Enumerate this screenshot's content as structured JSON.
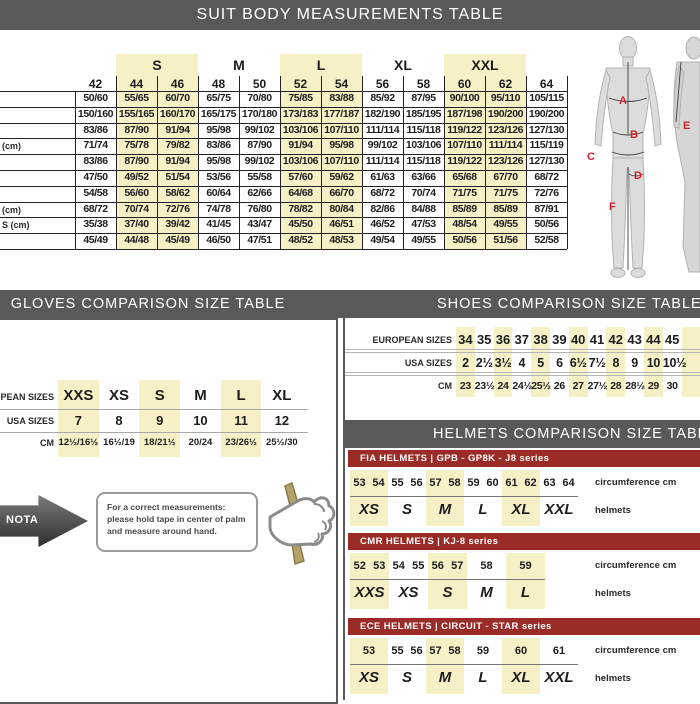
{
  "colors": {
    "header_bar": "#58595b",
    "series_bar": "#9b2b26",
    "highlight_yellow": "#f5f0c5",
    "marker_red": "#d12128"
  },
  "suit": {
    "title": "SUIT BODY MEASUREMENTS TABLE",
    "size_groups": [
      {
        "label": "S",
        "highlight": true
      },
      {
        "label": "M",
        "highlight": false
      },
      {
        "label": "L",
        "highlight": true
      },
      {
        "label": "XL",
        "highlight": false
      },
      {
        "label": "XXL",
        "highlight": true
      }
    ],
    "columns": [
      "42",
      "44",
      "46",
      "48",
      "50",
      "52",
      "54",
      "56",
      "58",
      "60",
      "62",
      "64"
    ],
    "rows": [
      {
        "label": "",
        "values": [
          "50/60",
          "55/65",
          "60/70",
          "65/75",
          "70/80",
          "75/85",
          "83/88",
          "85/92",
          "87/95",
          "90/100",
          "95/110",
          "105/115"
        ]
      },
      {
        "label": "",
        "values": [
          "150/160",
          "155/165",
          "160/170",
          "165/175",
          "170/180",
          "173/183",
          "177/187",
          "182/190",
          "185/195",
          "187/198",
          "190/200",
          "190/200"
        ]
      },
      {
        "label": "",
        "values": [
          "83/86",
          "87/90",
          "91/94",
          "95/98",
          "99/102",
          "103/106",
          "107/110",
          "111/114",
          "115/118",
          "119/122",
          "123/126",
          "127/130"
        ]
      },
      {
        "label": "(cm)",
        "values": [
          "71/74",
          "75/78",
          "79/82",
          "83/86",
          "87/90",
          "91/94",
          "95/98",
          "99/102",
          "103/106",
          "107/110",
          "111/114",
          "115/119"
        ]
      },
      {
        "label": "",
        "values": [
          "83/86",
          "87/90",
          "91/94",
          "95/98",
          "99/102",
          "103/106",
          "107/110",
          "111/114",
          "115/118",
          "119/122",
          "123/126",
          "127/130"
        ]
      },
      {
        "label": "",
        "values": [
          "47/50",
          "49/52",
          "51/54",
          "53/56",
          "55/58",
          "57/60",
          "59/62",
          "61/63",
          "63/66",
          "65/68",
          "67/70",
          "68/72"
        ]
      },
      {
        "label": "",
        "values": [
          "54/58",
          "56/60",
          "58/62",
          "60/64",
          "62/66",
          "64/68",
          "66/70",
          "68/72",
          "70/74",
          "71/75",
          "71/75",
          "72/76"
        ]
      },
      {
        "label": "(cm)",
        "values": [
          "68/72",
          "70/74",
          "72/76",
          "74/78",
          "76/80",
          "78/82",
          "80/84",
          "82/86",
          "84/88",
          "85/89",
          "85/89",
          "87/91"
        ]
      },
      {
        "label": "S (cm)",
        "values": [
          "35/38",
          "37/40",
          "39/42",
          "41/45",
          "43/47",
          "45/50",
          "46/51",
          "46/52",
          "47/53",
          "48/54",
          "49/55",
          "50/56"
        ]
      },
      {
        "label": "",
        "values": [
          "45/49",
          "44/48",
          "45/49",
          "46/50",
          "47/51",
          "48/52",
          "48/53",
          "49/54",
          "49/55",
          "50/56",
          "51/56",
          "52/58"
        ]
      }
    ],
    "figure_markers": [
      "A",
      "B",
      "C",
      "D",
      "E",
      "F"
    ]
  },
  "gloves": {
    "title": "GLOVES COMPARISON SIZE TABLE",
    "row_labels": [
      "EUROPEAN SIZES",
      "USA SIZES",
      "CM"
    ],
    "european_sizes": [
      "XXS",
      "XS",
      "S",
      "M",
      "L",
      "XL"
    ],
    "usa_sizes": [
      "7",
      "8",
      "9",
      "10",
      "11",
      "12"
    ],
    "cm": [
      "12½/16½",
      "16½/19",
      "18/21½",
      "20/24",
      "23/26½",
      "25½/30"
    ],
    "highlight_columns": [
      0,
      2,
      4
    ],
    "note_label": "NOTA",
    "note_text": "For a correct measurements: please hold tape in center of palm and measure around hand."
  },
  "shoes": {
    "title": "SHOES COMPARISON SIZE TABLE",
    "row_labels": [
      "EUROPEAN SIZES",
      "USA SIZES",
      "CM"
    ],
    "european_sizes": [
      "34",
      "35",
      "36",
      "37",
      "38",
      "39",
      "40",
      "41",
      "42",
      "43",
      "44",
      "45"
    ],
    "usa_sizes": [
      "2",
      "2½",
      "3½",
      "4",
      "5",
      "6",
      "6½",
      "7½",
      "8",
      "9",
      "10",
      "10½"
    ],
    "cm": [
      "23",
      "23½",
      "24",
      "24½",
      "25½",
      "26",
      "27",
      "27½",
      "28",
      "28½",
      "29",
      "30"
    ],
    "highlight_columns": [
      0,
      2,
      4,
      6,
      8,
      10
    ]
  },
  "helmets": {
    "title": "HELMETS COMPARISON SIZE TABLE",
    "circumference_label": "circumference cm",
    "helmets_label": "helmets",
    "blocks": [
      {
        "series": "FIA HELMETS | GPB - GP8K - J8 series",
        "groups": [
          {
            "size": "XS",
            "cms": [
              "53",
              "54"
            ],
            "highlight": true
          },
          {
            "size": "S",
            "cms": [
              "55",
              "56"
            ],
            "highlight": false
          },
          {
            "size": "M",
            "cms": [
              "57",
              "58"
            ],
            "highlight": true
          },
          {
            "size": "L",
            "cms": [
              "59",
              "60"
            ],
            "highlight": false
          },
          {
            "size": "XL",
            "cms": [
              "61",
              "62"
            ],
            "highlight": true
          },
          {
            "size": "XXL",
            "cms": [
              "63",
              "64"
            ],
            "highlight": false
          }
        ]
      },
      {
        "series": "CMR HELMETS | KJ-8 series",
        "groups": [
          {
            "size": "XXS",
            "cms": [
              "52",
              "53"
            ],
            "highlight": true
          },
          {
            "size": "XS",
            "cms": [
              "54",
              "55"
            ],
            "highlight": false
          },
          {
            "size": "S",
            "cms": [
              "56",
              "57"
            ],
            "highlight": true
          },
          {
            "size": "M",
            "cms": [
              "58"
            ],
            "highlight": false
          },
          {
            "size": "L",
            "cms": [
              "59"
            ],
            "highlight": true
          }
        ]
      },
      {
        "series": "ECE HELMETS | CIRCUIT - STAR series",
        "groups": [
          {
            "size": "XS",
            "cms": [
              "53"
            ],
            "highlight": true
          },
          {
            "size": "S",
            "cms": [
              "55",
              "56"
            ],
            "highlight": false
          },
          {
            "size": "M",
            "cms": [
              "57",
              "58"
            ],
            "highlight": true
          },
          {
            "size": "L",
            "cms": [
              "59"
            ],
            "highlight": false
          },
          {
            "size": "XL",
            "cms": [
              "60"
            ],
            "highlight": true
          },
          {
            "size": "XXL",
            "cms": [
              "61"
            ],
            "highlight": false
          }
        ]
      }
    ]
  }
}
